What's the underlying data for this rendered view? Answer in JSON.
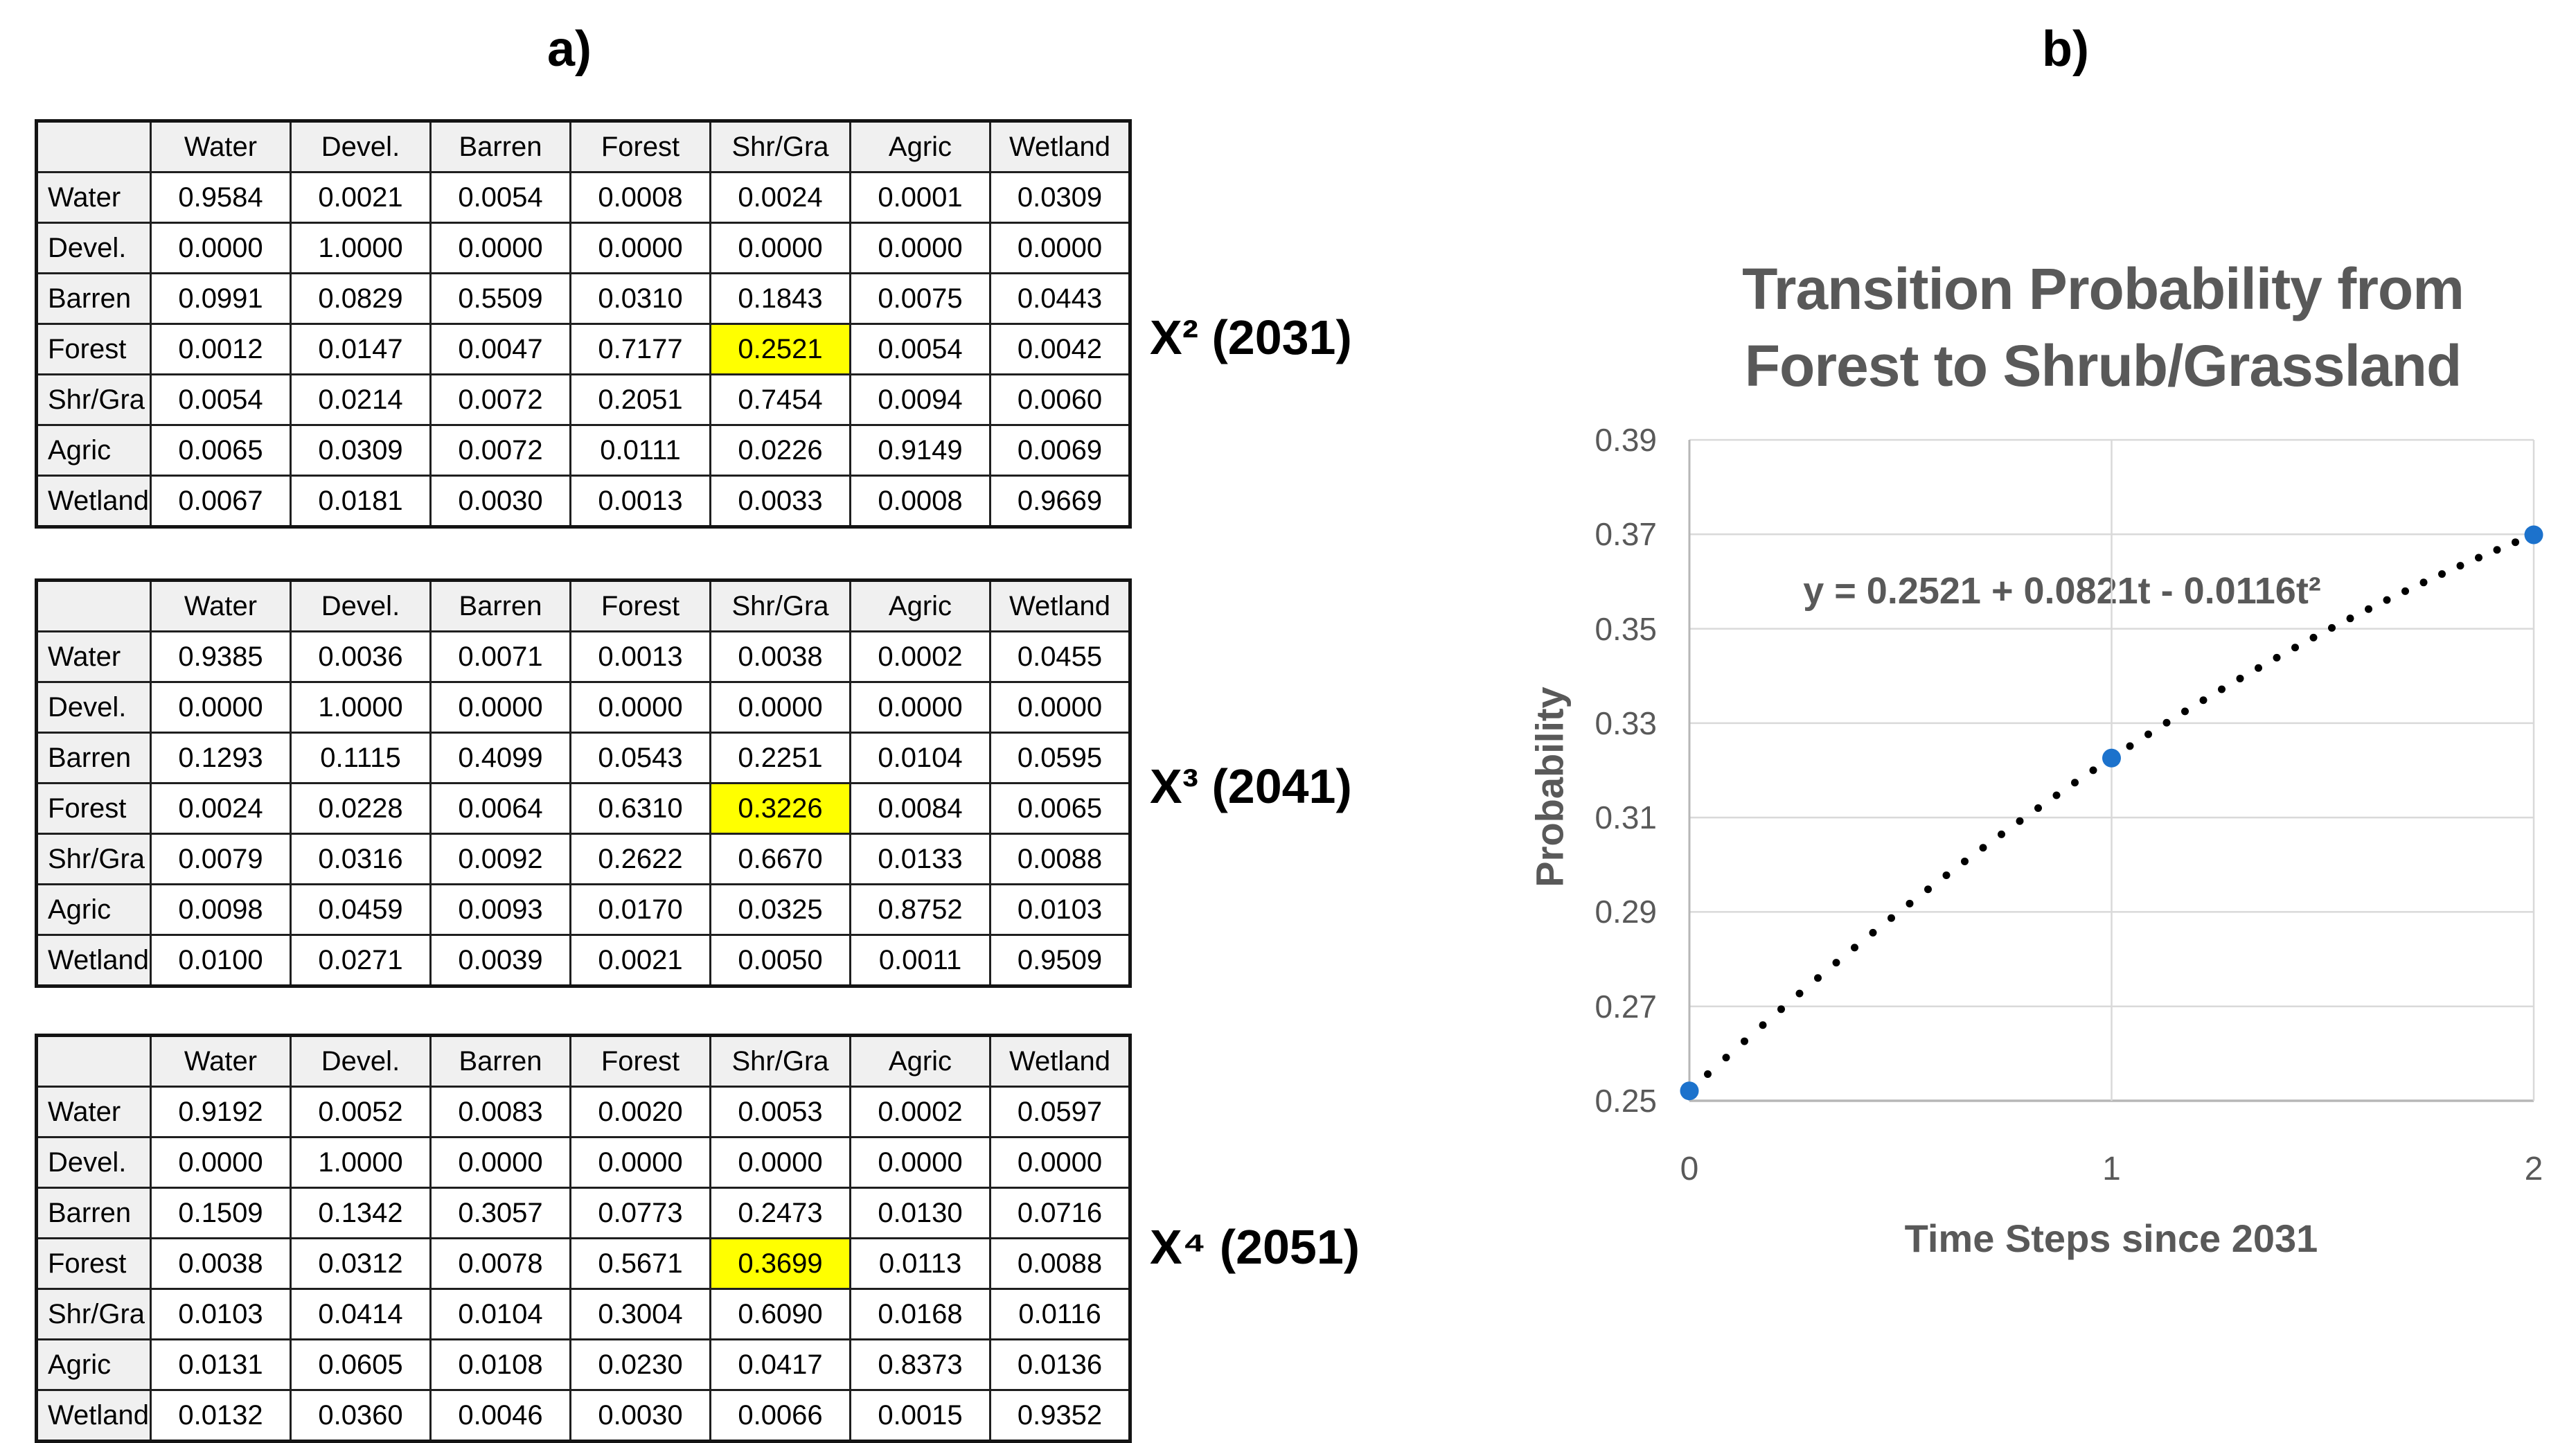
{
  "panel_a_label": "a)",
  "panel_b_label": "b)",
  "colors": {
    "highlight_yellow": "#ffff00",
    "header_fill": "#f0f0f0",
    "table_border": "#1f1f1f",
    "gridline_gray": "#d9d9d9",
    "axis_gray": "#b7b7b7",
    "chart_text_gray": "#595959",
    "trend_dot_black": "#000000",
    "marker_blue": "#1c72cc"
  },
  "matrices": [
    {
      "label": "X² (2031)",
      "columns": [
        "Water",
        "Devel.",
        "Barren",
        "Forest",
        "Shr/Gra",
        "Agric",
        "Wetland"
      ],
      "rows": [
        {
          "label": "Water",
          "values": [
            "0.9584",
            "0.0021",
            "0.0054",
            "0.0008",
            "0.0024",
            "0.0001",
            "0.0309"
          ]
        },
        {
          "label": "Devel.",
          "values": [
            "0.0000",
            "1.0000",
            "0.0000",
            "0.0000",
            "0.0000",
            "0.0000",
            "0.0000"
          ]
        },
        {
          "label": "Barren",
          "values": [
            "0.0991",
            "0.0829",
            "0.5509",
            "0.0310",
            "0.1843",
            "0.0075",
            "0.0443"
          ]
        },
        {
          "label": "Forest",
          "values": [
            "0.0012",
            "0.0147",
            "0.0047",
            "0.7177",
            "0.2521",
            "0.0054",
            "0.0042"
          ]
        },
        {
          "label": "Shr/Gra",
          "values": [
            "0.0054",
            "0.0214",
            "0.0072",
            "0.2051",
            "0.7454",
            "0.0094",
            "0.0060"
          ]
        },
        {
          "label": "Agric",
          "values": [
            "0.0065",
            "0.0309",
            "0.0072",
            "0.0111",
            "0.0226",
            "0.9149",
            "0.0069"
          ]
        },
        {
          "label": "Wetland",
          "values": [
            "0.0067",
            "0.0181",
            "0.0030",
            "0.0013",
            "0.0033",
            "0.0008",
            "0.9669"
          ]
        }
      ],
      "highlight": {
        "row_index": 3,
        "col_index": 4,
        "row": "Forest",
        "col": "Shr/Gra",
        "value": "0.2521"
      }
    },
    {
      "label": "X³ (2041)",
      "columns": [
        "Water",
        "Devel.",
        "Barren",
        "Forest",
        "Shr/Gra",
        "Agric",
        "Wetland"
      ],
      "rows": [
        {
          "label": "Water",
          "values": [
            "0.9385",
            "0.0036",
            "0.0071",
            "0.0013",
            "0.0038",
            "0.0002",
            "0.0455"
          ]
        },
        {
          "label": "Devel.",
          "values": [
            "0.0000",
            "1.0000",
            "0.0000",
            "0.0000",
            "0.0000",
            "0.0000",
            "0.0000"
          ]
        },
        {
          "label": "Barren",
          "values": [
            "0.1293",
            "0.1115",
            "0.4099",
            "0.0543",
            "0.2251",
            "0.0104",
            "0.0595"
          ]
        },
        {
          "label": "Forest",
          "values": [
            "0.0024",
            "0.0228",
            "0.0064",
            "0.6310",
            "0.3226",
            "0.0084",
            "0.0065"
          ]
        },
        {
          "label": "Shr/Gra",
          "values": [
            "0.0079",
            "0.0316",
            "0.0092",
            "0.2622",
            "0.6670",
            "0.0133",
            "0.0088"
          ]
        },
        {
          "label": "Agric",
          "values": [
            "0.0098",
            "0.0459",
            "0.0093",
            "0.0170",
            "0.0325",
            "0.8752",
            "0.0103"
          ]
        },
        {
          "label": "Wetland",
          "values": [
            "0.0100",
            "0.0271",
            "0.0039",
            "0.0021",
            "0.0050",
            "0.0011",
            "0.9509"
          ]
        }
      ],
      "highlight": {
        "row_index": 3,
        "col_index": 4,
        "row": "Forest",
        "col": "Shr/Gra",
        "value": "0.3226"
      }
    },
    {
      "label": "X⁴ (2051)",
      "columns": [
        "Water",
        "Devel.",
        "Barren",
        "Forest",
        "Shr/Gra",
        "Agric",
        "Wetland"
      ],
      "rows": [
        {
          "label": "Water",
          "values": [
            "0.9192",
            "0.0052",
            "0.0083",
            "0.0020",
            "0.0053",
            "0.0002",
            "0.0597"
          ]
        },
        {
          "label": "Devel.",
          "values": [
            "0.0000",
            "1.0000",
            "0.0000",
            "0.0000",
            "0.0000",
            "0.0000",
            "0.0000"
          ]
        },
        {
          "label": "Barren",
          "values": [
            "0.1509",
            "0.1342",
            "0.3057",
            "0.0773",
            "0.2473",
            "0.0130",
            "0.0716"
          ]
        },
        {
          "label": "Forest",
          "values": [
            "0.0038",
            "0.0312",
            "0.0078",
            "0.5671",
            "0.3699",
            "0.0113",
            "0.0088"
          ]
        },
        {
          "label": "Shr/Gra",
          "values": [
            "0.0103",
            "0.0414",
            "0.0104",
            "0.3004",
            "0.6090",
            "0.0168",
            "0.0116"
          ]
        },
        {
          "label": "Agric",
          "values": [
            "0.0131",
            "0.0605",
            "0.0108",
            "0.0230",
            "0.0417",
            "0.8373",
            "0.0136"
          ]
        },
        {
          "label": "Wetland",
          "values": [
            "0.0132",
            "0.0360",
            "0.0046",
            "0.0030",
            "0.0066",
            "0.0015",
            "0.9352"
          ]
        }
      ],
      "highlight": {
        "row_index": 3,
        "col_index": 4,
        "row": "Forest",
        "col": "Shr/Gra",
        "value": "0.3699"
      }
    }
  ],
  "chart_data": {
    "type": "scatter",
    "title": "Transition Probability from Forest to Shrub/Grassland",
    "title_lines": [
      "Transition Probability from",
      "Forest to Shrub/Grassland"
    ],
    "xlabel": "Time Steps since 2031",
    "ylabel": "Probability",
    "x": [
      0,
      1,
      2
    ],
    "y": [
      0.2521,
      0.3226,
      0.3699
    ],
    "xlim": [
      0,
      2
    ],
    "ylim": [
      0.25,
      0.39
    ],
    "xticks": [
      "0",
      "1",
      "2"
    ],
    "yticks": [
      "0.39",
      "0.37",
      "0.35",
      "0.33",
      "0.31",
      "0.29",
      "0.27",
      "0.25"
    ],
    "grid": true,
    "legend": "none",
    "trendline": {
      "equation_label": "y = 0.2521 + 0.0821t - 0.0116t²",
      "intercept": 0.2521,
      "linear": 0.0821,
      "quadratic": -0.0116,
      "style": "dotted",
      "dot_count": 47
    }
  }
}
